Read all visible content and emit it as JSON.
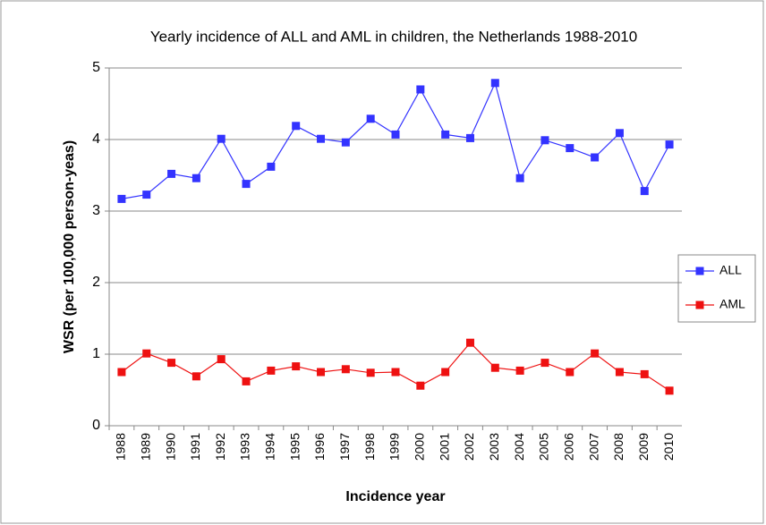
{
  "chart_data": {
    "type": "line",
    "title": "Yearly incidence of ALL and AML in children, the Netherlands 1988-2010",
    "x_label": "Incidence year",
    "y_label": "WSR (per 100,000 person-yeas)",
    "categories": [
      "1988",
      "1989",
      "1990",
      "1991",
      "1992",
      "1993",
      "1994",
      "1995",
      "1996",
      "1997",
      "1998",
      "1999",
      "2000",
      "2001",
      "2002",
      "2003",
      "2004",
      "2005",
      "2006",
      "2007",
      "2008",
      "2009",
      "2010"
    ],
    "series": [
      {
        "name": "ALL",
        "color": "#3333ff",
        "values": [
          3.17,
          3.23,
          3.52,
          3.46,
          4.01,
          3.38,
          3.62,
          4.19,
          4.01,
          3.96,
          4.29,
          4.07,
          4.7,
          4.07,
          4.02,
          4.79,
          3.46,
          3.99,
          3.88,
          3.75,
          4.09,
          3.28,
          3.93
        ]
      },
      {
        "name": "AML",
        "color": "#ee1111",
        "values": [
          0.75,
          1.01,
          0.88,
          0.69,
          0.93,
          0.62,
          0.77,
          0.83,
          0.75,
          0.79,
          0.74,
          0.75,
          0.56,
          0.75,
          1.16,
          0.81,
          0.77,
          0.88,
          0.75,
          1.01,
          0.75,
          0.72,
          0.49
        ]
      }
    ],
    "ylim": [
      0,
      5
    ],
    "yticks": [
      0,
      1,
      2,
      3,
      4,
      5
    ],
    "grid": true,
    "legend": "right"
  }
}
